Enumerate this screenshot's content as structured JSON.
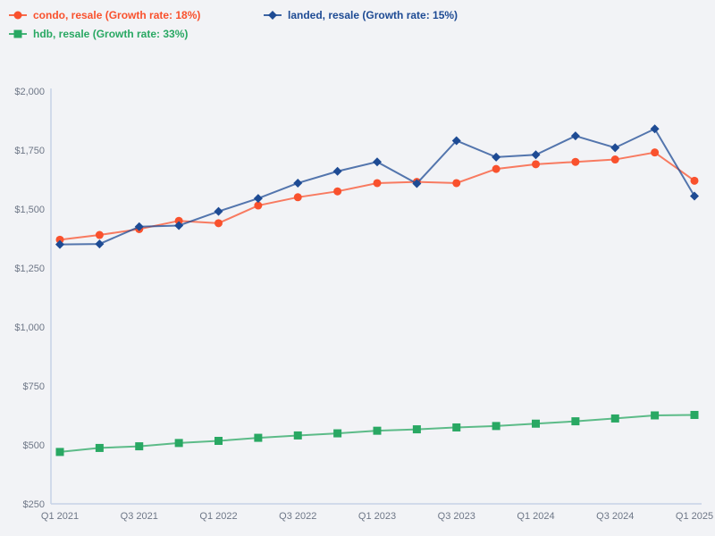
{
  "chart_data": {
    "type": "line",
    "title": "",
    "xlabel": "",
    "ylabel": "",
    "categories": [
      "Q1 2021",
      "Q2 2021",
      "Q3 2021",
      "Q4 2021",
      "Q1 2022",
      "Q2 2022",
      "Q3 2022",
      "Q4 2022",
      "Q1 2023",
      "Q2 2023",
      "Q3 2023",
      "Q4 2023",
      "Q1 2024",
      "Q2 2024",
      "Q3 2024",
      "Q4 2024",
      "Q1 2025"
    ],
    "x_tick_labels": [
      "Q1 2021",
      "Q3 2021",
      "Q1 2022",
      "Q3 2022",
      "Q1 2023",
      "Q3 2023",
      "Q1 2024",
      "Q3 2024",
      "Q1 2025"
    ],
    "y_tick_labels": [
      "$250",
      "$500",
      "$750",
      "$1,000",
      "$1,250",
      "$1,500",
      "$1,750",
      "$2,000"
    ],
    "ylim": [
      250,
      2000
    ],
    "ytick_step": 250,
    "grid": false,
    "legend_position": "top-left",
    "background_color": "#f2f3f6",
    "axis_color": "#c6d2e6",
    "tick_color": "#6e7787",
    "series": [
      {
        "name": "condo, resale",
        "growth_rate": "18%",
        "legend_label": "condo, resale (Growth rate: 18%)",
        "color": "#f9512d",
        "marker": "circle",
        "values": [
          1370,
          1390,
          1415,
          1450,
          1440,
          1515,
          1550,
          1575,
          1610,
          1615,
          1610,
          1670,
          1690,
          1700,
          1710,
          1740,
          1620
        ]
      },
      {
        "name": "landed, resale",
        "growth_rate": "15%",
        "legend_label": "landed, resale (Growth rate: 15%)",
        "color": "#1e4b94",
        "marker": "diamond",
        "values": [
          1350,
          1352,
          1425,
          1430,
          1490,
          1545,
          1610,
          1660,
          1700,
          1608,
          1790,
          1720,
          1730,
          1810,
          1760,
          1840,
          1555
        ]
      },
      {
        "name": "hdb, resale",
        "growth_rate": "33%",
        "legend_label": "hdb, resale (Growth rate: 33%)",
        "color": "#29a863",
        "marker": "square",
        "values": [
          470,
          487,
          494,
          508,
          517,
          530,
          540,
          549,
          560,
          566,
          574,
          580,
          590,
          600,
          612,
          625,
          627
        ]
      }
    ]
  }
}
